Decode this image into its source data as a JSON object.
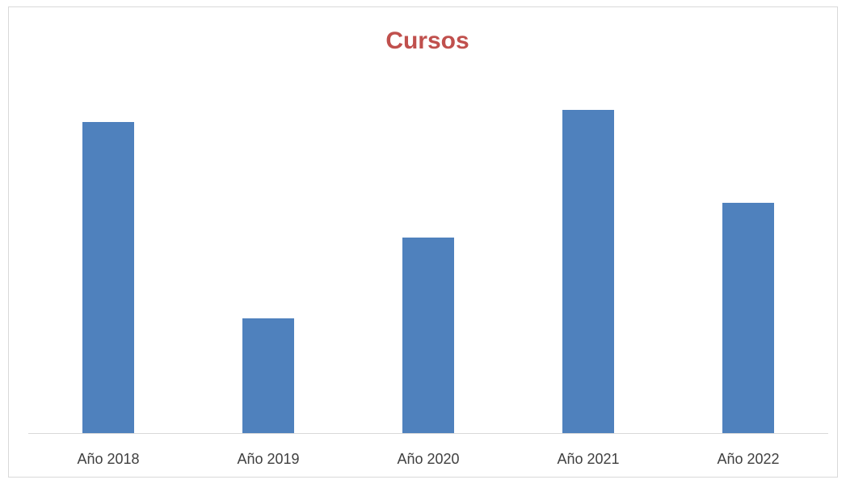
{
  "chart_data": {
    "type": "bar",
    "title": "Cursos",
    "categories": [
      "Año 2018",
      "Año 2019",
      "Año 2020",
      "Año 2021",
      "Año 2022"
    ],
    "values": [
      385,
      142,
      242,
      400,
      285
    ],
    "color": "#4f81bd",
    "ylim": [
      0,
      420
    ],
    "grid": false
  }
}
